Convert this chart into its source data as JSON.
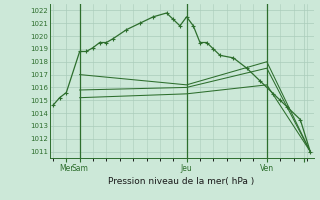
{
  "background_color": "#cce8d8",
  "grid_color": "#aaccbb",
  "line_color": "#2d6e2d",
  "title": "Pression niveau de la mer( hPa )",
  "ylim": [
    1010.5,
    1022.5
  ],
  "yticks": [
    1011,
    1012,
    1013,
    1014,
    1015,
    1016,
    1017,
    1018,
    1019,
    1020,
    1021,
    1022
  ],
  "xlim": [
    -1,
    78
  ],
  "vlines_x": [
    8,
    40,
    64
  ],
  "xtick_positions": [
    4,
    8,
    40,
    64,
    75
  ],
  "xtick_labels": [
    "Mer",
    "Sam",
    "Jeu",
    "Ven",
    ""
  ],
  "series_main": {
    "x": [
      0,
      2,
      4,
      8,
      10,
      12,
      14,
      16,
      18,
      22,
      26,
      30,
      34,
      36,
      38,
      40,
      42,
      44,
      46,
      48,
      50,
      54,
      58,
      62,
      66,
      68,
      70,
      74,
      77
    ],
    "y": [
      1014.6,
      1015.2,
      1015.6,
      1018.8,
      1018.8,
      1019.1,
      1019.5,
      1019.5,
      1019.8,
      1020.5,
      1021.0,
      1021.5,
      1021.8,
      1021.3,
      1020.8,
      1021.5,
      1020.8,
      1019.5,
      1019.5,
      1019.0,
      1018.5,
      1018.3,
      1017.5,
      1016.5,
      1015.5,
      1015.0,
      1014.5,
      1013.5,
      1011.0
    ]
  },
  "series_trend1": {
    "x": [
      8,
      40,
      64,
      77
    ],
    "y": [
      1017.0,
      1016.2,
      1018.0,
      1011.0
    ]
  },
  "series_trend2": {
    "x": [
      8,
      40,
      64,
      77
    ],
    "y": [
      1015.8,
      1016.0,
      1017.5,
      1011.0
    ]
  },
  "series_trend3": {
    "x": [
      8,
      40,
      64,
      77
    ],
    "y": [
      1015.2,
      1015.5,
      1016.2,
      1011.0
    ]
  }
}
